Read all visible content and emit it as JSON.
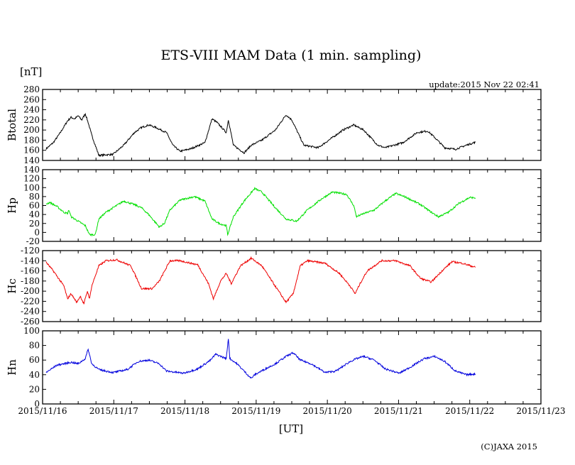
{
  "chart_data": {
    "type": "line",
    "title": "ETS-VIII MAM Data (1 min. sampling)",
    "unit_label": "[nT]",
    "update": "update:2015 Nov 22 02:41",
    "xlabel": "[UT]",
    "copyright": "(C)JAXA 2015",
    "x_unit": "days since 2015/11/16 00:00 UT",
    "xlim": [
      0,
      7
    ],
    "x_ticks": [
      "2015/11/16",
      "2015/11/17",
      "2015/11/18",
      "2015/11/19",
      "2015/11/20",
      "2015/11/21",
      "2015/11/22",
      "2015/11/23"
    ],
    "grid": false,
    "panels": [
      {
        "name": "Btotal",
        "ylabel": "Btotal",
        "color": "#000000",
        "ylim": [
          140,
          280
        ],
        "y_ticks": [
          "280",
          "260",
          "240",
          "220",
          "200",
          "180",
          "160",
          "140"
        ],
        "points": [
          [
            0.05,
            163
          ],
          [
            0.15,
            175
          ],
          [
            0.25,
            195
          ],
          [
            0.35,
            218
          ],
          [
            0.4,
            225
          ],
          [
            0.45,
            222
          ],
          [
            0.5,
            228
          ],
          [
            0.55,
            220
          ],
          [
            0.6,
            232
          ],
          [
            0.64,
            215
          ],
          [
            0.69,
            190
          ],
          [
            0.79,
            150
          ],
          [
            0.99,
            152
          ],
          [
            1.14,
            170
          ],
          [
            1.29,
            195
          ],
          [
            1.39,
            205
          ],
          [
            1.49,
            210
          ],
          [
            1.59,
            205
          ],
          [
            1.74,
            195
          ],
          [
            1.83,
            170
          ],
          [
            1.93,
            158
          ],
          [
            2.08,
            163
          ],
          [
            2.28,
            175
          ],
          [
            2.38,
            222
          ],
          [
            2.45,
            215
          ],
          [
            2.58,
            195
          ],
          [
            2.61,
            220
          ],
          [
            2.68,
            170
          ],
          [
            2.83,
            155
          ],
          [
            2.93,
            170
          ],
          [
            3.08,
            180
          ],
          [
            3.27,
            200
          ],
          [
            3.42,
            230
          ],
          [
            3.5,
            220
          ],
          [
            3.67,
            170
          ],
          [
            3.87,
            165
          ],
          [
            4.07,
            185
          ],
          [
            4.22,
            200
          ],
          [
            4.37,
            210
          ],
          [
            4.51,
            200
          ],
          [
            4.71,
            170
          ],
          [
            4.81,
            165
          ],
          [
            5.06,
            175
          ],
          [
            5.26,
            195
          ],
          [
            5.41,
            198
          ],
          [
            5.51,
            185
          ],
          [
            5.65,
            165
          ],
          [
            5.8,
            162
          ],
          [
            5.95,
            170
          ],
          [
            6.08,
            176
          ]
        ]
      },
      {
        "name": "Hp",
        "ylabel": "Hp",
        "color": "#00e000",
        "ylim": [
          -20,
          140
        ],
        "y_ticks": [
          "140",
          "120",
          "100",
          "80",
          "60",
          "40",
          "20",
          "0",
          "-20"
        ],
        "points": [
          [
            0.05,
            63
          ],
          [
            0.1,
            67
          ],
          [
            0.2,
            58
          ],
          [
            0.3,
            45
          ],
          [
            0.35,
            42
          ],
          [
            0.37,
            50
          ],
          [
            0.4,
            35
          ],
          [
            0.5,
            25
          ],
          [
            0.6,
            15
          ],
          [
            0.66,
            -5
          ],
          [
            0.74,
            -5
          ],
          [
            0.79,
            30
          ],
          [
            0.89,
            45
          ],
          [
            1.04,
            60
          ],
          [
            1.14,
            70
          ],
          [
            1.29,
            62
          ],
          [
            1.39,
            55
          ],
          [
            1.49,
            40
          ],
          [
            1.64,
            12
          ],
          [
            1.71,
            20
          ],
          [
            1.79,
            50
          ],
          [
            1.93,
            72
          ],
          [
            2.13,
            80
          ],
          [
            2.28,
            70
          ],
          [
            2.38,
            30
          ],
          [
            2.48,
            20
          ],
          [
            2.58,
            15
          ],
          [
            2.6,
            -5
          ],
          [
            2.68,
            35
          ],
          [
            2.83,
            70
          ],
          [
            2.98,
            98
          ],
          [
            3.08,
            90
          ],
          [
            3.27,
            55
          ],
          [
            3.42,
            30
          ],
          [
            3.57,
            25
          ],
          [
            3.72,
            50
          ],
          [
            3.92,
            75
          ],
          [
            4.07,
            90
          ],
          [
            4.27,
            85
          ],
          [
            4.37,
            60
          ],
          [
            4.41,
            35
          ],
          [
            4.51,
            42
          ],
          [
            4.66,
            50
          ],
          [
            4.81,
            70
          ],
          [
            4.96,
            87
          ],
          [
            5.11,
            78
          ],
          [
            5.31,
            62
          ],
          [
            5.46,
            45
          ],
          [
            5.56,
            35
          ],
          [
            5.7,
            45
          ],
          [
            5.85,
            65
          ],
          [
            6.0,
            78
          ],
          [
            6.08,
            77
          ]
        ]
      },
      {
        "name": "Hc",
        "ylabel": "Hc",
        "color": "#ee0000",
        "ylim": [
          -260,
          -120
        ],
        "y_ticks": [
          "-120",
          "-140",
          "-160",
          "-180",
          "-200",
          "-220",
          "-240",
          "-260"
        ],
        "points": [
          [
            0.05,
            -143
          ],
          [
            0.15,
            -160
          ],
          [
            0.3,
            -190
          ],
          [
            0.35,
            -215
          ],
          [
            0.4,
            -205
          ],
          [
            0.48,
            -222
          ],
          [
            0.53,
            -210
          ],
          [
            0.58,
            -225
          ],
          [
            0.63,
            -200
          ],
          [
            0.66,
            -215
          ],
          [
            0.69,
            -190
          ],
          [
            0.79,
            -150
          ],
          [
            0.89,
            -140
          ],
          [
            1.04,
            -138
          ],
          [
            1.24,
            -150
          ],
          [
            1.39,
            -195
          ],
          [
            1.54,
            -195
          ],
          [
            1.64,
            -180
          ],
          [
            1.79,
            -140
          ],
          [
            1.93,
            -140
          ],
          [
            2.18,
            -148
          ],
          [
            2.33,
            -185
          ],
          [
            2.4,
            -215
          ],
          [
            2.5,
            -180
          ],
          [
            2.58,
            -165
          ],
          [
            2.65,
            -185
          ],
          [
            2.78,
            -150
          ],
          [
            2.93,
            -135
          ],
          [
            3.08,
            -150
          ],
          [
            3.22,
            -180
          ],
          [
            3.42,
            -222
          ],
          [
            3.52,
            -205
          ],
          [
            3.62,
            -150
          ],
          [
            3.72,
            -140
          ],
          [
            3.97,
            -145
          ],
          [
            4.17,
            -165
          ],
          [
            4.32,
            -190
          ],
          [
            4.39,
            -205
          ],
          [
            4.46,
            -185
          ],
          [
            4.56,
            -160
          ],
          [
            4.76,
            -140
          ],
          [
            4.96,
            -140
          ],
          [
            5.16,
            -150
          ],
          [
            5.31,
            -175
          ],
          [
            5.46,
            -182
          ],
          [
            5.61,
            -160
          ],
          [
            5.75,
            -142
          ],
          [
            5.9,
            -145
          ],
          [
            6.08,
            -153
          ]
        ]
      },
      {
        "name": "Hn",
        "ylabel": "Hn",
        "color": "#0000dd",
        "ylim": [
          0,
          100
        ],
        "y_ticks": [
          "100",
          "80",
          "60",
          "40",
          "20",
          "0"
        ],
        "points": [
          [
            0.05,
            43
          ],
          [
            0.2,
            53
          ],
          [
            0.3,
            55
          ],
          [
            0.4,
            57
          ],
          [
            0.5,
            55
          ],
          [
            0.6,
            62
          ],
          [
            0.64,
            75
          ],
          [
            0.69,
            55
          ],
          [
            0.79,
            47
          ],
          [
            0.99,
            43
          ],
          [
            1.19,
            47
          ],
          [
            1.34,
            58
          ],
          [
            1.49,
            60
          ],
          [
            1.64,
            55
          ],
          [
            1.74,
            45
          ],
          [
            1.98,
            42
          ],
          [
            2.18,
            48
          ],
          [
            2.36,
            60
          ],
          [
            2.43,
            68
          ],
          [
            2.58,
            62
          ],
          [
            2.61,
            90
          ],
          [
            2.63,
            62
          ],
          [
            2.73,
            55
          ],
          [
            2.83,
            45
          ],
          [
            2.93,
            35
          ],
          [
            2.98,
            40
          ],
          [
            3.13,
            48
          ],
          [
            3.27,
            55
          ],
          [
            3.42,
            65
          ],
          [
            3.52,
            70
          ],
          [
            3.62,
            60
          ],
          [
            3.77,
            55
          ],
          [
            3.97,
            43
          ],
          [
            4.12,
            45
          ],
          [
            4.32,
            58
          ],
          [
            4.41,
            62
          ],
          [
            4.51,
            65
          ],
          [
            4.66,
            60
          ],
          [
            4.81,
            48
          ],
          [
            5.01,
            42
          ],
          [
            5.16,
            50
          ],
          [
            5.36,
            62
          ],
          [
            5.51,
            65
          ],
          [
            5.65,
            58
          ],
          [
            5.8,
            45
          ],
          [
            5.95,
            40
          ],
          [
            6.08,
            41
          ]
        ]
      }
    ]
  }
}
